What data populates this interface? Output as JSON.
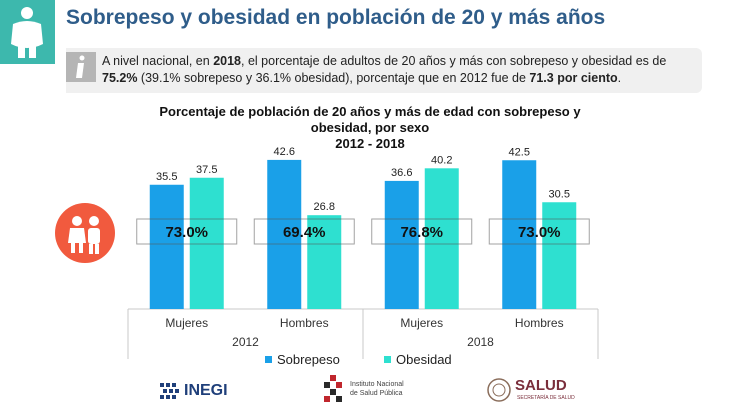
{
  "page": {
    "title": "Sobrepeso y obesidad en población de 20 y más años",
    "info": {
      "p1": "A nivel nacional, en ",
      "year": "2018",
      "p2": ", el porcentaje de adultos de 20 años y más con sobrepeso y obesidad es de ",
      "pct": "75.2%",
      "p3": " (39.1% sobrepeso y 36.1% obesidad), porcentaje que en 2012 fue de ",
      "prev": "71.3 por ciento",
      "p4": "."
    }
  },
  "logos": {
    "inegi": "INEGI",
    "insp_line1": "Instituto Nacional",
    "insp_line2": "de Salud Pública",
    "salud": "SALUD",
    "salud_sub": "SECRETARÍA DE SALUD"
  },
  "icons": {
    "top": "person-icon",
    "info": "info-icon",
    "people": "couple-icon"
  },
  "chart_data": {
    "type": "bar",
    "title_lines": [
      "Porcentaje de población de 20 años y más de edad con sobrepeso y",
      "obesidad, por sexo",
      "2012 - 2018"
    ],
    "categories": [
      "Mujeres",
      "Hombres",
      "Mujeres",
      "Hombres"
    ],
    "groups": [
      "2012",
      "2018"
    ],
    "series": [
      {
        "name": "Sobrepeso",
        "values": [
          35.5,
          42.6,
          36.6,
          42.5
        ],
        "color": "#1aa0e8"
      },
      {
        "name": "Obesidad",
        "values": [
          37.5,
          26.8,
          40.2,
          30.5
        ],
        "color": "#2ee0d0"
      }
    ],
    "totals": [
      "73.0%",
      "69.4%",
      "76.8%",
      "73.0%"
    ],
    "ylim": [
      0,
      50
    ],
    "grid": false,
    "legend": "bottom"
  }
}
